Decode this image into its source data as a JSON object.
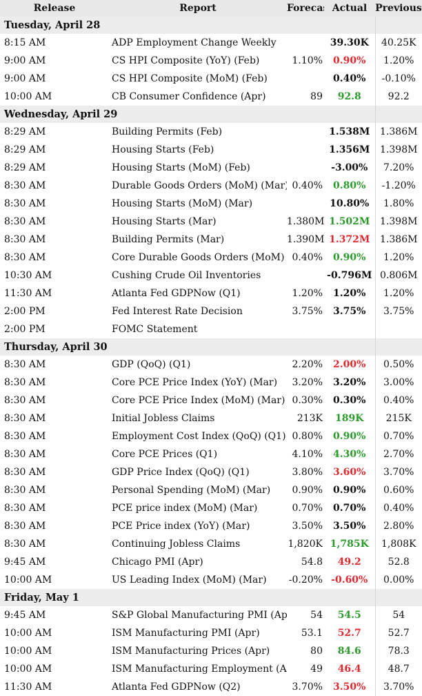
{
  "columns": {
    "release": "Release",
    "report": "Report",
    "forecast": "Forecast",
    "actual": "Actual",
    "previous": "Previous"
  },
  "colors": {
    "positive": "#2a9b2a",
    "negative": "#e0282e",
    "neutral": "#111111",
    "header_bg": "#e8e8e8",
    "day_bg": "#ececec"
  },
  "days": [
    {
      "label": "Tuesday, April 28",
      "rows": [
        {
          "time": "8:15 AM",
          "report": "ADP Employment Change Weekly",
          "forecast": "",
          "actual": "39.30K",
          "actual_tone": "neu",
          "previous": "40.25K"
        },
        {
          "time": "9:00 AM",
          "report": "CS HPI Composite (YoY) (Feb)",
          "forecast": "1.10%",
          "actual": "0.90%",
          "actual_tone": "neg",
          "previous": "1.20%"
        },
        {
          "time": "9:00 AM",
          "report": "CS HPI Composite (MoM) (Feb)",
          "forecast": "",
          "actual": "0.40%",
          "actual_tone": "neu",
          "previous": "-0.10%"
        },
        {
          "time": "10:00 AM",
          "report": "CB Consumer Confidence (Apr)",
          "forecast": "89",
          "actual": "92.8",
          "actual_tone": "pos",
          "previous": "92.2"
        }
      ]
    },
    {
      "label": "Wednesday, April 29",
      "rows": [
        {
          "time": "8:29 AM",
          "report": "Building Permits (Feb)",
          "forecast": "",
          "actual": "1.538M",
          "actual_tone": "neu",
          "previous": "1.386M"
        },
        {
          "time": "8:29 AM",
          "report": "Housing Starts (Feb)",
          "forecast": "",
          "actual": "1.356M",
          "actual_tone": "neu",
          "previous": "1.398M"
        },
        {
          "time": "8:29 AM",
          "report": "Housing Starts (MoM) (Feb)",
          "forecast": "",
          "actual": "-3.00%",
          "actual_tone": "neu",
          "previous": "7.20%"
        },
        {
          "time": "8:30 AM",
          "report": "Durable Goods Orders (MoM) (Mar)",
          "forecast": "0.40%",
          "actual": "0.80%",
          "actual_tone": "pos",
          "previous": "-1.20%"
        },
        {
          "time": "8:30 AM",
          "report": "Housing Starts (MoM) (Mar)",
          "forecast": "",
          "actual": "10.80%",
          "actual_tone": "neu",
          "previous": "1.80%"
        },
        {
          "time": "8:30 AM",
          "report": "Housing Starts (Mar)",
          "forecast": "1.380M",
          "actual": "1.502M",
          "actual_tone": "pos",
          "previous": "1.398M"
        },
        {
          "time": "8:30 AM",
          "report": "Building Permits (Mar)",
          "forecast": "1.390M",
          "actual": "1.372M",
          "actual_tone": "neg",
          "previous": "1.386M"
        },
        {
          "time": "8:30 AM",
          "report": "Core Durable Goods Orders (MoM) (Ma",
          "forecast": "0.40%",
          "actual": "0.90%",
          "actual_tone": "pos",
          "previous": "1.20%"
        },
        {
          "time": "10:30 AM",
          "report": "Cushing Crude Oil Inventories",
          "forecast": "",
          "actual": "-0.796M",
          "actual_tone": "neu",
          "previous": "0.806M"
        },
        {
          "time": "11:30 AM",
          "report": "Atlanta Fed GDPNow (Q1)",
          "forecast": "1.20%",
          "actual": "1.20%",
          "actual_tone": "neu",
          "previous": "1.20%"
        },
        {
          "time": "2:00 PM",
          "report": "Fed Interest Rate Decision",
          "forecast": "3.75%",
          "actual": "3.75%",
          "actual_tone": "neu",
          "previous": "3.75%"
        },
        {
          "time": "2:00 PM",
          "report": "FOMC Statement",
          "forecast": "",
          "actual": "",
          "actual_tone": "neu",
          "previous": ""
        }
      ]
    },
    {
      "label": "Thursday, April 30",
      "rows": [
        {
          "time": "8:30 AM",
          "report": "GDP (QoQ) (Q1)",
          "forecast": "2.20%",
          "actual": "2.00%",
          "actual_tone": "neg",
          "previous": "0.50%"
        },
        {
          "time": "8:30 AM",
          "report": "Core PCE Price Index (YoY) (Mar)",
          "forecast": "3.20%",
          "actual": "3.20%",
          "actual_tone": "neu",
          "previous": "3.00%"
        },
        {
          "time": "8:30 AM",
          "report": "Core PCE Price Index (MoM) (Mar)",
          "forecast": "0.30%",
          "actual": "0.30%",
          "actual_tone": "neu",
          "previous": "0.40%"
        },
        {
          "time": "8:30 AM",
          "report": "Initial Jobless Claims",
          "forecast": "213K",
          "actual": "189K",
          "actual_tone": "pos",
          "previous": "215K"
        },
        {
          "time": "8:30 AM",
          "report": "Employment Cost Index (QoQ) (Q1)",
          "forecast": "0.80%",
          "actual": "0.90%",
          "actual_tone": "pos",
          "previous": "0.70%"
        },
        {
          "time": "8:30 AM",
          "report": "Core PCE Prices (Q1)",
          "forecast": "4.10%",
          "actual": "4.30%",
          "actual_tone": "pos",
          "previous": "2.70%"
        },
        {
          "time": "8:30 AM",
          "report": "GDP Price Index (QoQ) (Q1)",
          "forecast": "3.80%",
          "actual": "3.60%",
          "actual_tone": "neg",
          "previous": "3.70%"
        },
        {
          "time": "8:30 AM",
          "report": "Personal Spending (MoM) (Mar)",
          "forecast": "0.90%",
          "actual": "0.90%",
          "actual_tone": "neu",
          "previous": "0.60%"
        },
        {
          "time": "8:30 AM",
          "report": "PCE price index (MoM) (Mar)",
          "forecast": "0.70%",
          "actual": "0.70%",
          "actual_tone": "neu",
          "previous": "0.40%"
        },
        {
          "time": "8:30 AM",
          "report": "PCE Price index (YoY) (Mar)",
          "forecast": "3.50%",
          "actual": "3.50%",
          "actual_tone": "neu",
          "previous": "2.80%"
        },
        {
          "time": "8:30 AM",
          "report": "Continuing Jobless Claims",
          "forecast": "1,820K",
          "actual": "1,785K",
          "actual_tone": "pos",
          "previous": "1,808K"
        },
        {
          "time": "9:45 AM",
          "report": "Chicago PMI (Apr)",
          "forecast": "54.8",
          "actual": "49.2",
          "actual_tone": "neg",
          "previous": "52.8"
        },
        {
          "time": "10:00 AM",
          "report": "US Leading Index (MoM) (Mar)",
          "forecast": "-0.20%",
          "actual": "-0.60%",
          "actual_tone": "neg",
          "previous": "0.00%"
        }
      ]
    },
    {
      "label": "Friday, May 1",
      "rows": [
        {
          "time": "9:45 AM",
          "report": "S&P Global Manufacturing PMI (Apr)",
          "forecast": "54",
          "actual": "54.5",
          "actual_tone": "pos",
          "previous": "54"
        },
        {
          "time": "10:00 AM",
          "report": "ISM Manufacturing PMI (Apr)",
          "forecast": "53.1",
          "actual": "52.7",
          "actual_tone": "neg",
          "previous": "52.7"
        },
        {
          "time": "10:00 AM",
          "report": "ISM Manufacturing Prices (Apr)",
          "forecast": "80",
          "actual": "84.6",
          "actual_tone": "pos",
          "previous": "78.3"
        },
        {
          "time": "10:00 AM",
          "report": "ISM Manufacturing Employment (Apr)",
          "forecast": "49",
          "actual": "46.4",
          "actual_tone": "neg",
          "previous": "48.7"
        },
        {
          "time": "11:30 AM",
          "report": "Atlanta Fed GDPNow (Q2)",
          "forecast": "3.70%",
          "actual": "3.50%",
          "actual_tone": "neg",
          "previous": "3.70%"
        }
      ]
    }
  ]
}
